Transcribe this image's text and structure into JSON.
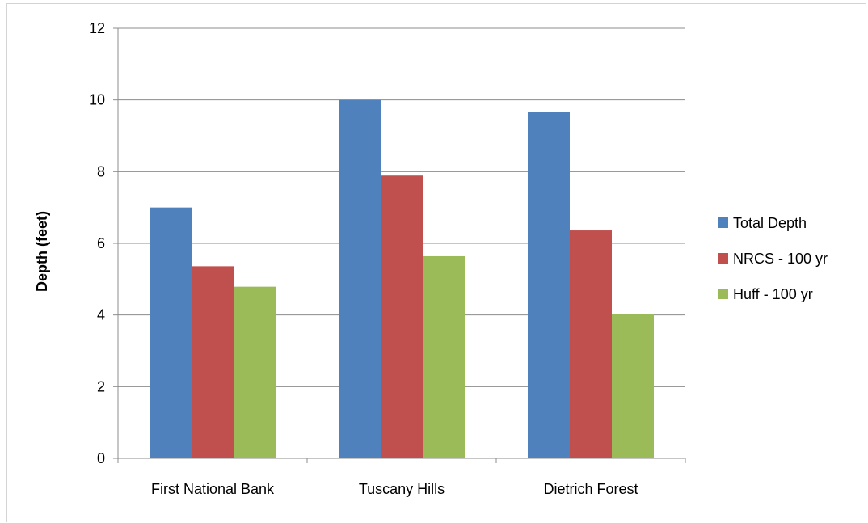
{
  "chart_data": {
    "type": "bar",
    "title": "",
    "xlabel": "",
    "ylabel": "Depth (feet)",
    "ylim": [
      0,
      12
    ],
    "yticks": [
      0,
      2,
      4,
      6,
      8,
      10,
      12
    ],
    "grid": true,
    "legend_position": "right",
    "categories": [
      "First National Bank",
      "Tuscany Hills",
      "Dietrich Forest"
    ],
    "series": [
      {
        "name": "Total Depth",
        "color": "#4f81bd",
        "values": [
          7.0,
          10.0,
          9.67
        ]
      },
      {
        "name": "NRCS - 100 yr",
        "color": "#c0504d",
        "values": [
          5.36,
          7.89,
          6.36
        ]
      },
      {
        "name": "Huff - 100 yr",
        "color": "#9bbb59",
        "values": [
          4.79,
          5.64,
          4.03
        ]
      }
    ]
  }
}
